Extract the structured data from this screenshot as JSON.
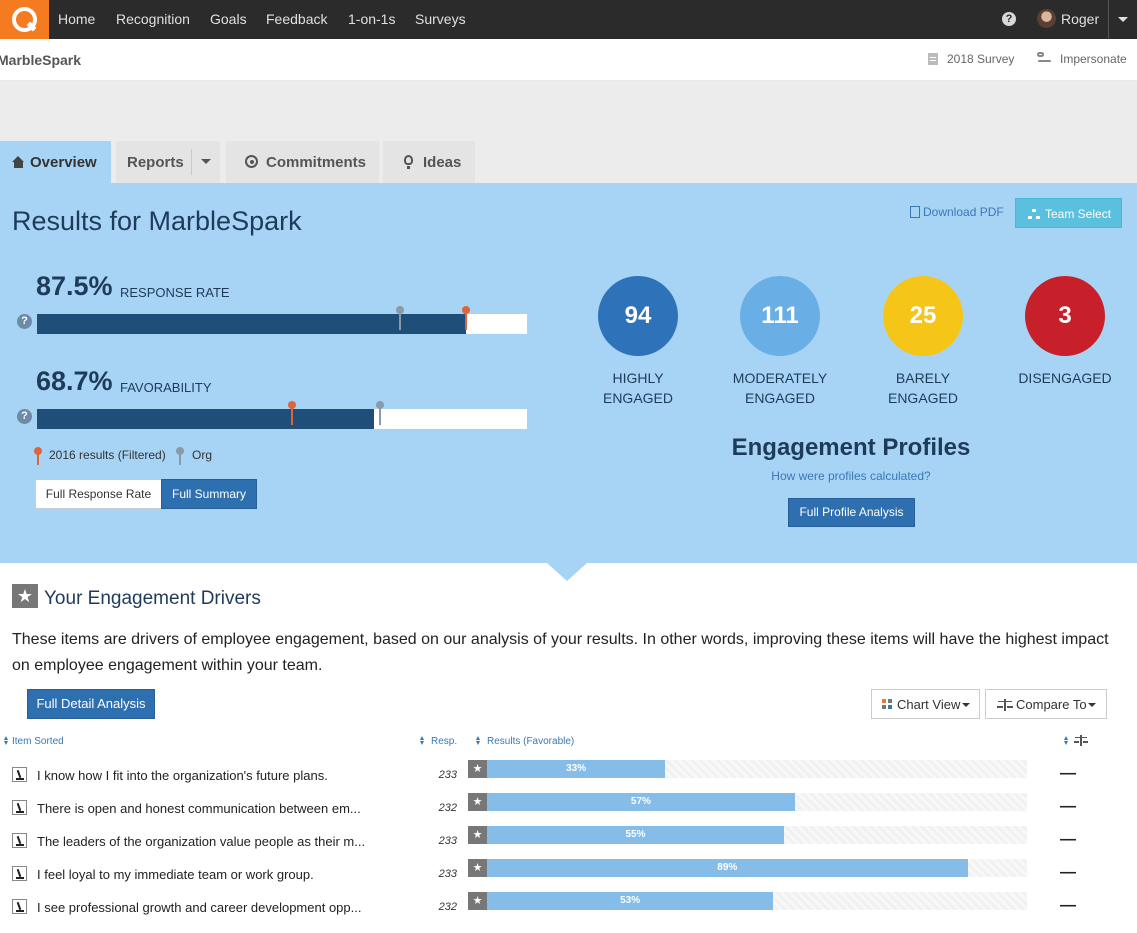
{
  "nav": {
    "items": [
      "Home",
      "Recognition",
      "Goals",
      "Feedback",
      "1-on-1s",
      "Surveys"
    ],
    "help": "?",
    "user": "Roger"
  },
  "subheader": {
    "company": "MarbleSpark",
    "survey": "2018 Survey",
    "impersonate": "Impersonate"
  },
  "tabs": {
    "overview": "Overview",
    "reports": "Reports",
    "commitments": "Commitments",
    "ideas": "Ideas"
  },
  "results": {
    "title": "Results for MarbleSpark",
    "download_pdf": "Download PDF",
    "team_select": "Team Select",
    "response_rate": {
      "value": "87.5%",
      "label": "RESPONSE RATE",
      "fill_pct": 87.5,
      "org_pct": 74,
      "filtered_pct": 87.5
    },
    "favorability": {
      "value": "68.7%",
      "label": "FAVORABILITY",
      "fill_pct": 68.7,
      "org_pct": 70,
      "filtered_pct": 52
    },
    "legend": {
      "filtered": "2016 results (Filtered)",
      "org": "Org"
    },
    "buttons": {
      "full_response_rate": "Full Response Rate",
      "full_summary": "Full Summary"
    }
  },
  "engagement": {
    "groups": [
      {
        "value": "94",
        "line1": "HIGHLY",
        "line2": "ENGAGED",
        "color": "#2e73b9"
      },
      {
        "value": "111",
        "line1": "MODERATELY",
        "line2": "ENGAGED",
        "color": "#6aaee6"
      },
      {
        "value": "25",
        "line1": "BARELY",
        "line2": "ENGAGED",
        "color": "#f5c518"
      },
      {
        "value": "3",
        "line1": "DISENGAGED",
        "line2": "",
        "color": "#c8202a"
      }
    ],
    "profiles_title": "Engagement Profiles",
    "profiles_link": "How were profiles calculated?",
    "profile_button": "Full Profile Analysis"
  },
  "drivers": {
    "title": "Your Engagement Drivers",
    "description": "These items are drivers of employee engagement, based on our analysis of your results. In other words, improving these items will have the highest impact on employee engagement within your team.",
    "detail_button": "Full Detail Analysis",
    "chart_view": "Chart View",
    "compare_to": "Compare To",
    "columns": {
      "item": "Item Sorted",
      "resp": "Resp.",
      "results": "Results (Favorable)"
    },
    "rows": [
      {
        "item": "I know how I fit into the organization's future plans.",
        "resp": "233",
        "pct": "33%",
        "value": 33,
        "compare": "—"
      },
      {
        "item": "There is open and honest communication between em...",
        "resp": "232",
        "pct": "57%",
        "value": 57,
        "compare": "—"
      },
      {
        "item": "The leaders of the organization value people as their m...",
        "resp": "233",
        "pct": "55%",
        "value": 55,
        "compare": "—"
      },
      {
        "item": "I feel loyal to my immediate team or work group.",
        "resp": "233",
        "pct": "89%",
        "value": 89,
        "compare": "—"
      },
      {
        "item": "I see professional growth and career development opp...",
        "resp": "232",
        "pct": "53%",
        "value": 53,
        "compare": "—"
      }
    ]
  }
}
